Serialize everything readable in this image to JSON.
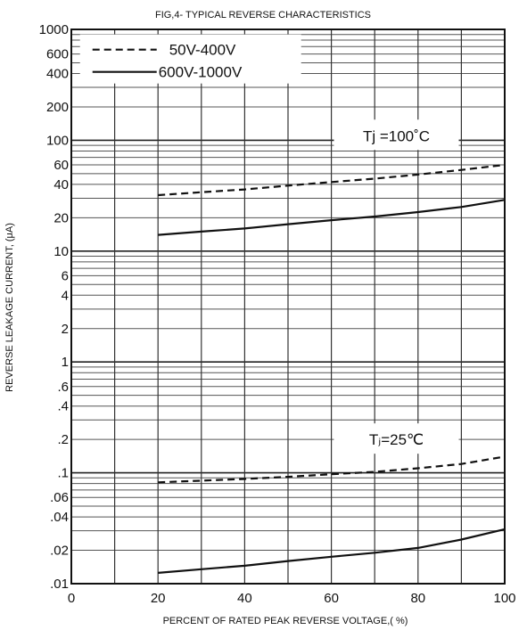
{
  "chart_data": {
    "type": "line",
    "title": "FIG,4- TYPICAL REVERSE CHARACTERISTICS",
    "xlabel": "PERCENT OF RATED PEAK REVERSE VOLTAGE,( %)",
    "ylabel": "REVERSE LEAKAGE CURRENT, (μA)",
    "xlim": [
      0,
      100
    ],
    "ylim": [
      0.01,
      1000
    ],
    "yscale": "log",
    "grid": true,
    "legend_position": "top-left",
    "x_ticks": [
      "0",
      "20",
      "40",
      "60",
      "80",
      "100"
    ],
    "y_ticks": [
      {
        "value": 1000,
        "label": "1000"
      },
      {
        "value": 600,
        "label": "600"
      },
      {
        "value": 400,
        "label": "400"
      },
      {
        "value": 200,
        "label": "200"
      },
      {
        "value": 100,
        "label": "100"
      },
      {
        "value": 60,
        "label": "60"
      },
      {
        "value": 40,
        "label": "40"
      },
      {
        "value": 20,
        "label": "20"
      },
      {
        "value": 10,
        "label": "10"
      },
      {
        "value": 6,
        "label": "6"
      },
      {
        "value": 4,
        "label": "4"
      },
      {
        "value": 2,
        "label": "2"
      },
      {
        "value": 1,
        "label": "1"
      },
      {
        "value": 0.6,
        "label": ".6"
      },
      {
        "value": 0.4,
        "label": ".4"
      },
      {
        "value": 0.2,
        "label": ".2"
      },
      {
        "value": 0.1,
        "label": ".1"
      },
      {
        "value": 0.06,
        "label": ".06"
      },
      {
        "value": 0.04,
        "label": ".04"
      },
      {
        "value": 0.02,
        "label": ".02"
      },
      {
        "value": 0.01,
        "label": ".01"
      }
    ],
    "legend": [
      {
        "label": "50V-400V",
        "style": "dashed"
      },
      {
        "label": "600V-1000V",
        "style": "solid"
      }
    ],
    "annotations": [
      {
        "text": "Tj =100˚C",
        "at": {
          "x": 75,
          "y": 110
        }
      },
      {
        "text": "Tⱼ=25℃",
        "at": {
          "x": 75,
          "y": 0.2
        }
      }
    ],
    "series": [
      {
        "name": "50V-400V",
        "style": "dashed",
        "x": [
          20,
          30,
          40,
          50,
          60,
          70,
          80,
          90,
          100
        ],
        "y": [
          32,
          34,
          36,
          39,
          42,
          45,
          49,
          54,
          60
        ]
      },
      {
        "name": "600V-1000V",
        "style": "solid",
        "x": [
          20,
          30,
          40,
          50,
          60,
          70,
          80,
          90,
          100
        ],
        "y": [
          14,
          15,
          16,
          17.5,
          19,
          20.5,
          22.5,
          25,
          29
        ]
      },
      {
        "name": "50V-400V",
        "style": "dashed",
        "x": [
          20,
          30,
          40,
          50,
          60,
          70,
          80,
          90,
          100
        ],
        "y": [
          0.082,
          0.085,
          0.088,
          0.092,
          0.097,
          0.102,
          0.11,
          0.12,
          0.14
        ]
      },
      {
        "name": "600V-1000V",
        "style": "solid",
        "x": [
          20,
          30,
          40,
          50,
          60,
          70,
          80,
          90,
          100
        ],
        "y": [
          0.0125,
          0.0135,
          0.0145,
          0.016,
          0.0175,
          0.019,
          0.021,
          0.025,
          0.031
        ]
      }
    ]
  }
}
